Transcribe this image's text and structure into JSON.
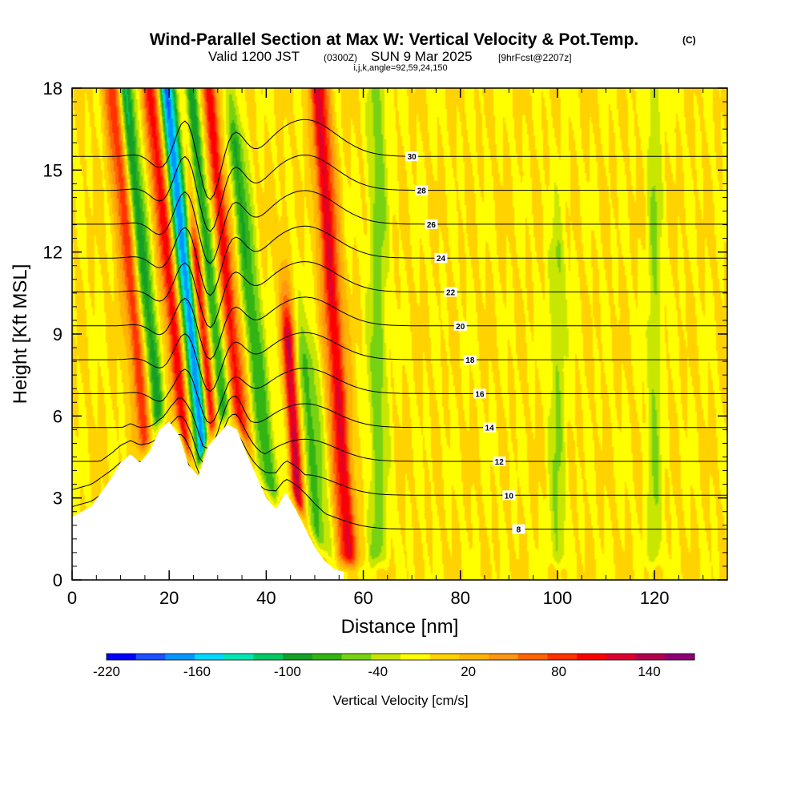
{
  "chart_data": {
    "type": "heatmap",
    "title": "Wind-Parallel Section at Max W: Vertical Velocity & Pot.Temp.",
    "title_mark": "(C)",
    "subtitle_prefix": "Valid 1200 JST",
    "subtitle_utc": "(0300Z)",
    "subtitle_date": "SUN 9 Mar 2025",
    "subtitle_fcst": "[9hrFcst@2207z]",
    "subtitle2": "i,j,k,angle=92,59,24,150",
    "xlabel": "Distance [nm]",
    "ylabel": "Height [Kft MSL]",
    "xlim": [
      0,
      135
    ],
    "ylim": [
      0,
      18
    ],
    "x_ticks": [
      0,
      20,
      40,
      60,
      80,
      100,
      120
    ],
    "y_ticks": [
      0,
      3,
      6,
      9,
      12,
      15,
      18
    ],
    "colorbar": {
      "label": "Vertical Velocity [cm/s]",
      "range": [
        -220,
        170
      ],
      "step": 20,
      "ticks": [
        -220,
        -160,
        -100,
        -40,
        20,
        80,
        140
      ],
      "colors": [
        "#0000ff",
        "#1e50ff",
        "#0096ff",
        "#00d8ff",
        "#00e6b4",
        "#00c864",
        "#14a028",
        "#32b414",
        "#78d214",
        "#c8e600",
        "#ffff00",
        "#ffd200",
        "#ffb400",
        "#ff9614",
        "#ff6400",
        "#ff3200",
        "#ff0000",
        "#dc0032",
        "#b40050",
        "#8c0078"
      ]
    },
    "terrain": {
      "x": [
        0,
        4,
        6,
        8,
        10,
        12,
        14,
        16,
        18,
        20,
        22,
        24,
        26,
        28,
        30,
        32,
        34,
        36,
        38,
        40,
        42,
        44,
        46,
        48,
        50,
        52,
        54,
        56
      ],
      "height_kft": [
        2.3,
        2.7,
        3.2,
        3.7,
        4.3,
        4.6,
        4.3,
        4.7,
        5.5,
        5.8,
        5.3,
        4.2,
        3.8,
        4.9,
        5.3,
        5.7,
        5.5,
        4.6,
        3.8,
        3.0,
        2.6,
        3.2,
        2.6,
        1.9,
        1.2,
        0.7,
        0.4,
        0.3
      ]
    },
    "w_features": [
      {
        "x": 13,
        "ztop": 18,
        "w": 90,
        "halfwidth": 1.8
      },
      {
        "x": 16,
        "ztop": 18,
        "w": -100,
        "halfwidth": 1.5
      },
      {
        "x": 21,
        "ztop": 18,
        "w": 110,
        "halfwidth": 1.6
      },
      {
        "x": 24.5,
        "ztop": 18,
        "w": -180,
        "halfwidth": 1.6
      },
      {
        "x": 27,
        "ztop": 12,
        "w": 120,
        "halfwidth": 1.3
      },
      {
        "x": 29.5,
        "ztop": 18,
        "w": -90,
        "halfwidth": 1.4
      },
      {
        "x": 33,
        "ztop": 18,
        "w": 110,
        "halfwidth": 1.6
      },
      {
        "x": 37.5,
        "ztop": 16,
        "w": -80,
        "halfwidth": 1.8
      },
      {
        "x": 44.5,
        "ztop": 9,
        "w": 150,
        "halfwidth": 1.2
      },
      {
        "x": 48,
        "ztop": 8,
        "w": -60,
        "halfwidth": 2.5
      },
      {
        "x": 54,
        "ztop": 18,
        "w": 120,
        "halfwidth": 2.0
      },
      {
        "x": 63,
        "ztop": 18,
        "w": -50,
        "halfwidth": 2.0
      },
      {
        "x": 100,
        "ztop": 12,
        "w": -40,
        "halfwidth": 1.8
      },
      {
        "x": 120,
        "ztop": 18,
        "w": -40,
        "halfwidth": 1.5
      }
    ],
    "theta_contours": [
      {
        "value": 8,
        "label": "8"
      },
      {
        "value": 10,
        "label": "10"
      },
      {
        "value": 12,
        "label": "12"
      },
      {
        "value": 14,
        "label": "14"
      },
      {
        "value": 16,
        "label": "16"
      },
      {
        "value": 18,
        "label": "18"
      },
      {
        "value": 20,
        "label": "20"
      },
      {
        "value": 22,
        "label": "22"
      },
      {
        "value": 24,
        "label": "24"
      },
      {
        "value": 26,
        "label": "26"
      },
      {
        "value": 28,
        "label": "28"
      },
      {
        "value": 30,
        "label": "30"
      }
    ]
  }
}
